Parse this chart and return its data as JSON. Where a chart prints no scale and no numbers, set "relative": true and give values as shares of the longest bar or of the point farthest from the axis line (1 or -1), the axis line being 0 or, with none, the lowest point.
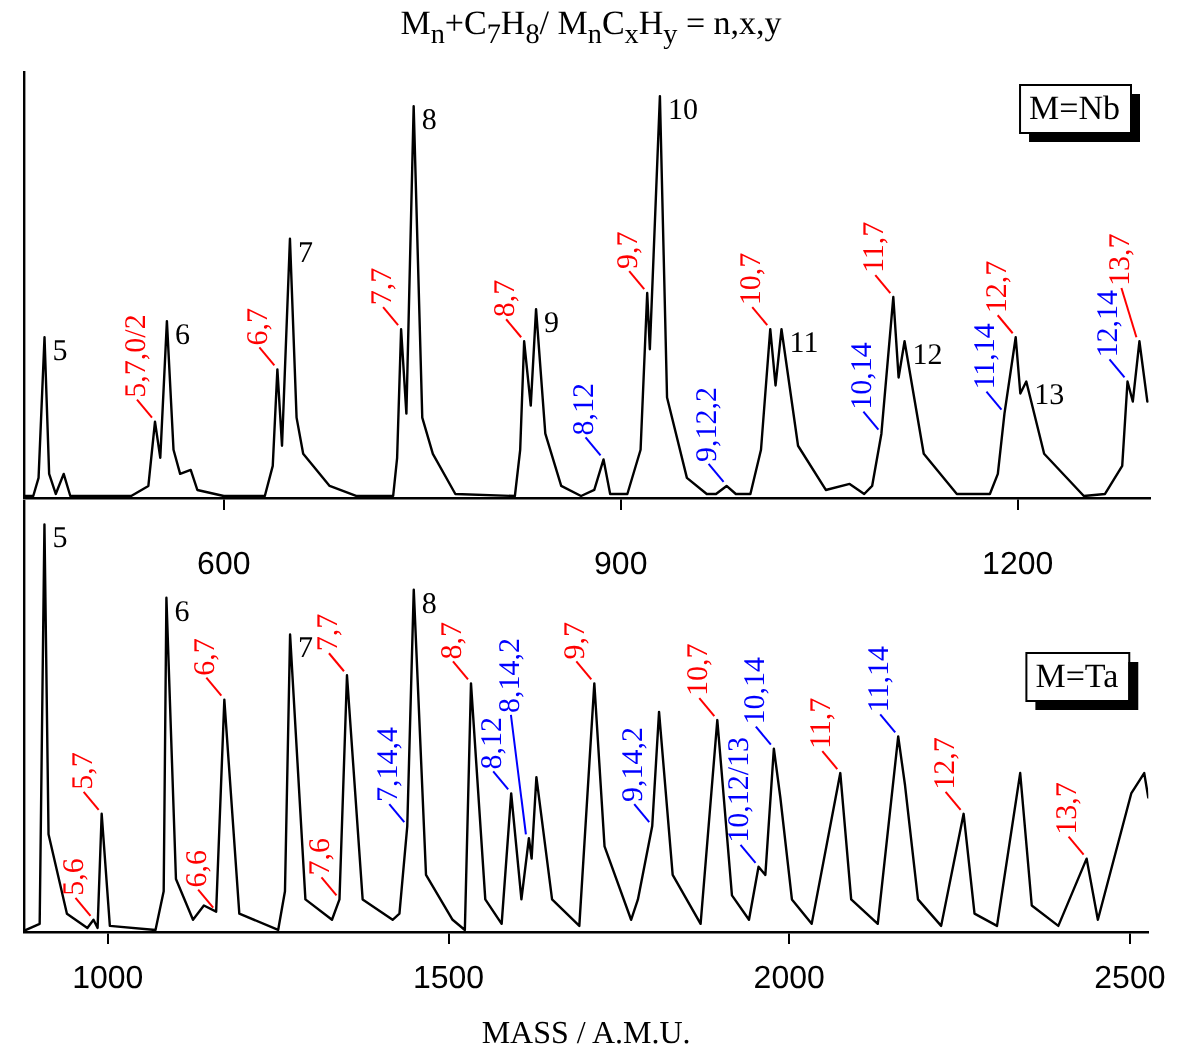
{
  "chart_data": [
    {
      "type": "line",
      "title": "M$_{n}$+C$_{7}$H$_{8}$/ M$_{n}$C$_{x}$H$_{y}$ = n,x,y",
      "relative": true,
      "grid": false,
      "legend": false,
      "marker": "none",
      "tick_labels": "x",
      "xlim": [
        449,
        1300
      ],
      "xticks": [
        600,
        900,
        1200
      ],
      "series": [
        {
          "color": "#000000",
          "x": [
            449,
            456,
            460,
            464.5,
            468,
            473,
            479,
            484,
            500,
            530,
            543,
            548,
            552,
            557,
            562,
            567,
            575,
            580,
            600,
            631,
            637,
            640.5,
            644,
            650,
            655,
            660,
            680,
            700,
            728,
            731,
            734,
            738,
            743.5,
            750,
            758,
            775,
            820,
            824,
            827,
            832,
            836,
            843,
            855,
            870,
            880,
            887,
            892,
            905,
            915,
            920,
            922,
            929.6,
            935,
            950,
            965,
            972,
            980,
            987,
            998,
            1006,
            1013,
            1017,
            1021.5,
            1034,
            1055,
            1073,
            1084,
            1090,
            1097,
            1106,
            1110,
            1114.5,
            1129,
            1154,
            1179,
            1185,
            1190,
            1198.5,
            1202,
            1206.5,
            1220,
            1250,
            1266,
            1279,
            1283,
            1287,
            1292,
            1298
          ],
          "values": [
            0.005,
            0.005,
            0.05,
            0.4,
            0.06,
            0.01,
            0.06,
            0.005,
            0.005,
            0.005,
            0.03,
            0.19,
            0.1,
            0.44,
            0.12,
            0.06,
            0.07,
            0.02,
            0.005,
            0.005,
            0.08,
            0.32,
            0.13,
            0.645,
            0.2,
            0.11,
            0.03,
            0.005,
            0.005,
            0.1,
            0.42,
            0.21,
            0.975,
            0.2,
            0.11,
            0.01,
            0.005,
            0.12,
            0.39,
            0.23,
            0.47,
            0.16,
            0.03,
            0.005,
            0.02,
            0.096,
            0.01,
            0.01,
            0.12,
            0.51,
            0.37,
            1.0,
            0.25,
            0.05,
            0.01,
            0.01,
            0.03,
            0.01,
            0.01,
            0.12,
            0.42,
            0.28,
            0.42,
            0.13,
            0.02,
            0.035,
            0.01,
            0.03,
            0.16,
            0.5,
            0.3,
            0.39,
            0.11,
            0.01,
            0.01,
            0.06,
            0.21,
            0.4,
            0.26,
            0.29,
            0.11,
            0.005,
            0.01,
            0.08,
            0.29,
            0.24,
            0.39,
            0.24
          ]
        }
      ],
      "annotations": [
        {
          "text": "5",
          "x": 464.5,
          "y": 0.4
        },
        {
          "text": "5,7,0/2",
          "x": 548,
          "y": 0.19
        },
        {
          "text": "6",
          "x": 557,
          "y": 0.44
        },
        {
          "text": "6,7",
          "x": 640.5,
          "y": 0.32
        },
        {
          "text": "7",
          "x": 650,
          "y": 0.645
        },
        {
          "text": "7,7",
          "x": 734,
          "y": 0.42
        },
        {
          "text": "8",
          "x": 743.5,
          "y": 0.975
        },
        {
          "text": "8,7",
          "x": 827,
          "y": 0.39
        },
        {
          "text": "9",
          "x": 836,
          "y": 0.47
        },
        {
          "text": "8,12",
          "x": 887,
          "y": 0.096
        },
        {
          "text": "9,7",
          "x": 920,
          "y": 0.51
        },
        {
          "text": "10",
          "x": 929.6,
          "y": 1.0
        },
        {
          "text": "9,12,2",
          "x": 980,
          "y": 0.03
        },
        {
          "text": "10,7",
          "x": 1013,
          "y": 0.42
        },
        {
          "text": "11",
          "x": 1021.5,
          "y": 0.42
        },
        {
          "text": "10,14",
          "x": 1097,
          "y": 0.16
        },
        {
          "text": "11,7",
          "x": 1106,
          "y": 0.5
        },
        {
          "text": "12",
          "x": 1114.5,
          "y": 0.39
        },
        {
          "text": "11,14",
          "x": 1190,
          "y": 0.21
        },
        {
          "text": "12,7",
          "x": 1198.5,
          "y": 0.4
        },
        {
          "text": "13",
          "x": 1206.5,
          "y": 0.29
        },
        {
          "text": "12,14",
          "x": 1283,
          "y": 0.29
        },
        {
          "text": "13,7",
          "x": 1292,
          "y": 0.39
        },
        "M=Nb"
      ]
    },
    {
      "type": "line",
      "xlabel": "MASS / A.M.U.",
      "relative": true,
      "grid": false,
      "legend": false,
      "marker": "none",
      "tick_labels": "x",
      "xlim": [
        877,
        2527
      ],
      "xticks": [
        1000,
        1500,
        2000,
        2500
      ],
      "series": [
        {
          "color": "#000000",
          "x": [
            877,
            880,
            900,
            907,
            913,
            940,
            970,
            979,
            985,
            991,
            1003,
            1070,
            1082,
            1086,
            1100,
            1125,
            1141,
            1159,
            1171,
            1193,
            1250,
            1260,
            1267.5,
            1290,
            1329,
            1340,
            1351,
            1374,
            1418,
            1428,
            1439.5,
            1449,
            1467,
            1506,
            1524,
            1533,
            1554,
            1578,
            1592,
            1607,
            1618,
            1622,
            1629,
            1652,
            1692,
            1714,
            1729,
            1768,
            1778,
            1799,
            1809,
            1829,
            1870,
            1894.5,
            1916,
            1941,
            1955,
            1965,
            1977.5,
            1987,
            2004,
            2033,
            2075,
            2091,
            2130,
            2160,
            2170,
            2189,
            2223,
            2256,
            2272,
            2305,
            2339,
            2356,
            2395,
            2436.5,
            2453,
            2502,
            2521,
            2527
          ],
          "values": [
            0.005,
            0.005,
            0.02,
            1.0,
            0.24,
            0.045,
            0.01,
            0.03,
            0.01,
            0.29,
            0.015,
            0.005,
            0.1,
            0.82,
            0.13,
            0.03,
            0.065,
            0.05,
            0.57,
            0.045,
            0.005,
            0.1,
            0.73,
            0.08,
            0.03,
            0.08,
            0.63,
            0.08,
            0.03,
            0.045,
            0.26,
            0.84,
            0.14,
            0.03,
            0.005,
            0.61,
            0.08,
            0.02,
            0.34,
            0.08,
            0.23,
            0.18,
            0.38,
            0.08,
            0.015,
            0.61,
            0.21,
            0.03,
            0.08,
            0.26,
            0.54,
            0.14,
            0.02,
            0.52,
            0.09,
            0.03,
            0.16,
            0.14,
            0.45,
            0.33,
            0.08,
            0.02,
            0.39,
            0.08,
            0.02,
            0.48,
            0.36,
            0.08,
            0.015,
            0.29,
            0.045,
            0.015,
            0.39,
            0.065,
            0.015,
            0.18,
            0.03,
            0.34,
            0.39,
            0.33
          ]
        }
      ],
      "annotations": [
        {
          "text": "5",
          "x": 907,
          "y": 1.0
        },
        {
          "text": "5,6",
          "x": 979,
          "y": 0.03
        },
        {
          "text": "5,7",
          "x": 991,
          "y": 0.29
        },
        {
          "text": "6",
          "x": 1086,
          "y": 0.82
        },
        {
          "text": "6,6",
          "x": 1159,
          "y": 0.05
        },
        {
          "text": "6,7",
          "x": 1171,
          "y": 0.57
        },
        {
          "text": "7",
          "x": 1267.5,
          "y": 0.73
        },
        {
          "text": "7,6",
          "x": 1340,
          "y": 0.08
        },
        {
          "text": "7,7",
          "x": 1351,
          "y": 0.63
        },
        {
          "text": "7,14,4",
          "x": 1439.5,
          "y": 0.26
        },
        {
          "text": "8",
          "x": 1449,
          "y": 0.84
        },
        {
          "text": "8,7",
          "x": 1533,
          "y": 0.61
        },
        {
          "text": "8,12",
          "x": 1592,
          "y": 0.34
        },
        {
          "text": "8,14,2",
          "x": 1618,
          "y": 0.23
        },
        {
          "text": "9,7",
          "x": 1714,
          "y": 0.61
        },
        {
          "text": "9,14,2",
          "x": 1799,
          "y": 0.26
        },
        {
          "text": "10,7",
          "x": 1894.5,
          "y": 0.52
        },
        {
          "text": "10,12/13",
          "x": 1955,
          "y": 0.16
        },
        {
          "text": "10,14",
          "x": 1977.5,
          "y": 0.45
        },
        {
          "text": "11,7",
          "x": 2075,
          "y": 0.39
        },
        {
          "text": "11,14",
          "x": 2160,
          "y": 0.48
        },
        {
          "text": "12,7",
          "x": 2256,
          "y": 0.29
        },
        {
          "text": "13,7",
          "x": 2436.5,
          "y": 0.18
        },
        "M=Ta"
      ]
    }
  ]
}
